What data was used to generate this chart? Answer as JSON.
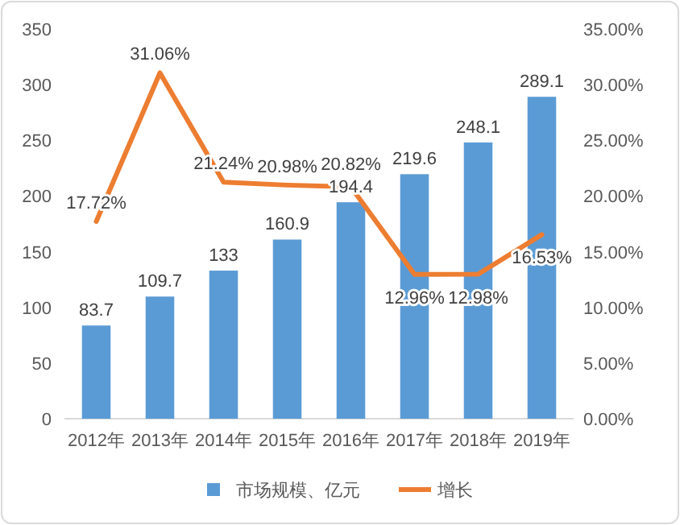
{
  "chart_data": {
    "type": "bar",
    "categories": [
      "2012年",
      "2013年",
      "2014年",
      "2015年",
      "2016年",
      "2017年",
      "2018年",
      "2019年"
    ],
    "series": [
      {
        "name": "市场规模、亿元",
        "color": "#5b9bd5",
        "values": [
          83.7,
          109.7,
          133,
          160.9,
          194.4,
          219.6,
          248.1,
          289.1
        ]
      },
      {
        "name": "增长",
        "type": "line",
        "axis": "y2",
        "color": "#ed7d31",
        "values": [
          17.72,
          31.06,
          21.24,
          20.98,
          20.82,
          12.96,
          12.98,
          16.53
        ],
        "value_labels": [
          "17.72%",
          "31.06%",
          "21.24%",
          "20.98%",
          "20.82%",
          "12.96%",
          "12.98%",
          "16.53%"
        ]
      }
    ],
    "ylim": [
      0,
      350
    ],
    "yticks": [
      0,
      50,
      100,
      150,
      200,
      250,
      300,
      350
    ],
    "y2lim": [
      0,
      35
    ],
    "y2ticks": [
      {
        "value": 0,
        "label": "0.00%"
      },
      {
        "value": 5,
        "label": "5.00%"
      },
      {
        "value": 10,
        "label": "10.00%"
      },
      {
        "value": 15,
        "label": "15.00%"
      },
      {
        "value": 20,
        "label": "20.00%"
      },
      {
        "value": 25,
        "label": "25.00%"
      },
      {
        "value": 30,
        "label": "30.00%"
      },
      {
        "value": 35,
        "label": "35.00%"
      }
    ],
    "data_labels": true,
    "legend": "bottom",
    "marker": "none",
    "line_style": "solid"
  }
}
